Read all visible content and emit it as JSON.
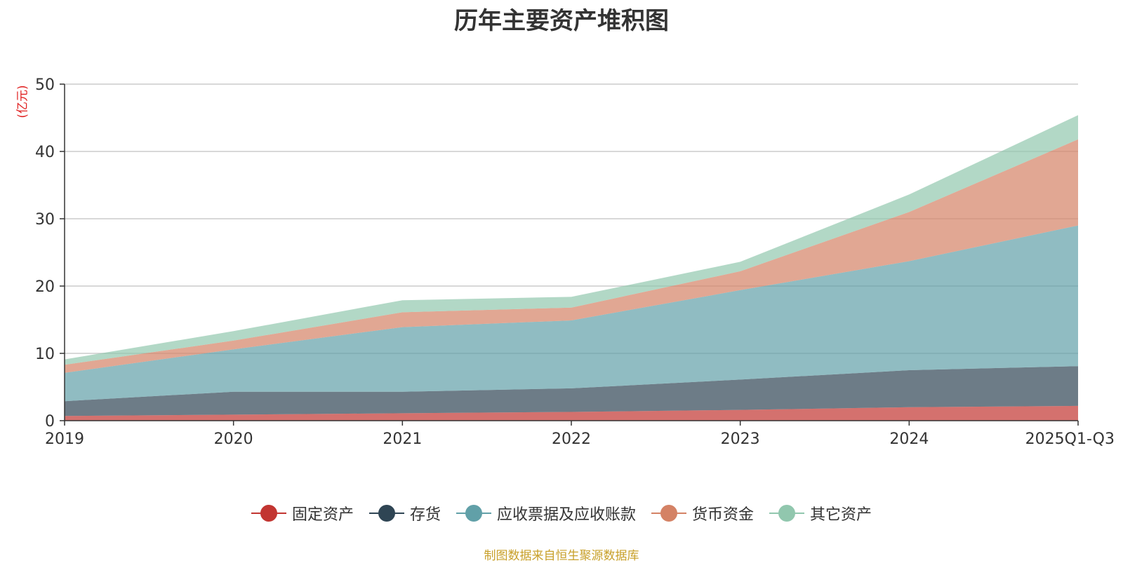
{
  "chart_data": {
    "type": "area",
    "stacked": true,
    "title": "历年主要资产堆积图",
    "ylabel": "(亿元)",
    "xlabel": "",
    "ylim": [
      0,
      50
    ],
    "yticks": [
      0,
      10,
      20,
      30,
      40,
      50
    ],
    "grid": true,
    "categories": [
      "2019",
      "2020",
      "2021",
      "2022",
      "2023",
      "2024",
      "2025Q1-Q3"
    ],
    "series": [
      {
        "name": "固定资产",
        "color": "#c23531",
        "values": [
          0.7,
          0.9,
          1.1,
          1.3,
          1.6,
          2.0,
          2.2
        ]
      },
      {
        "name": "存货",
        "color": "#2f4554",
        "values": [
          2.2,
          3.4,
          3.2,
          3.5,
          4.5,
          5.5,
          5.9
        ]
      },
      {
        "name": "应收票据及应收账款",
        "color": "#61a0a8",
        "values": [
          4.2,
          6.3,
          9.6,
          10.1,
          13.3,
          16.2,
          20.9
        ]
      },
      {
        "name": "货币资金",
        "color": "#d48265",
        "values": [
          1.2,
          1.3,
          2.2,
          1.9,
          2.8,
          7.3,
          12.8
        ]
      },
      {
        "name": "其它资产",
        "color": "#91c7ae",
        "values": [
          0.8,
          1.4,
          1.8,
          1.6,
          1.4,
          2.6,
          3.6
        ]
      }
    ],
    "source": "制图数据来自恒生聚源数据库"
  }
}
